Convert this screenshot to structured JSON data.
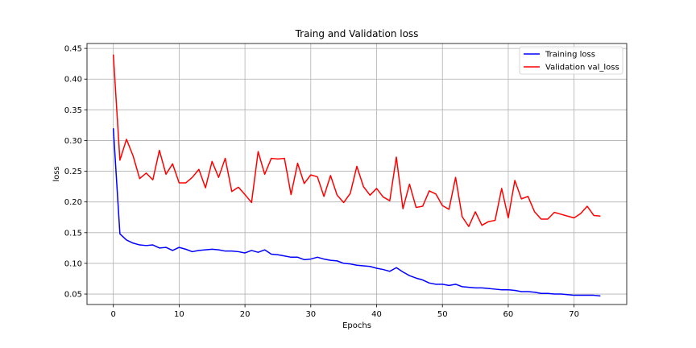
{
  "chart_data": {
    "type": "line",
    "title": "Traing and Validation loss",
    "xlabel": "Epochs",
    "ylabel": "loss",
    "xlim": [
      -4,
      78
    ],
    "ylim": [
      0.033,
      0.458
    ],
    "xticks": [
      0,
      10,
      20,
      30,
      40,
      50,
      60,
      70
    ],
    "yticks": [
      0.05,
      0.1,
      0.15,
      0.2,
      0.25,
      0.3,
      0.35,
      0.4,
      0.45
    ],
    "grid": true,
    "legend_position": "top-right",
    "series": [
      {
        "name": "Training loss",
        "color": "#0000ff",
        "values": [
          0.32,
          0.148,
          0.138,
          0.133,
          0.13,
          0.129,
          0.13,
          0.125,
          0.126,
          0.121,
          0.126,
          0.123,
          0.119,
          0.121,
          0.122,
          0.123,
          0.122,
          0.12,
          0.12,
          0.119,
          0.117,
          0.121,
          0.118,
          0.122,
          0.115,
          0.114,
          0.112,
          0.11,
          0.11,
          0.106,
          0.107,
          0.11,
          0.107,
          0.105,
          0.104,
          0.1,
          0.099,
          0.097,
          0.096,
          0.095,
          0.092,
          0.09,
          0.087,
          0.093,
          0.086,
          0.08,
          0.076,
          0.073,
          0.068,
          0.066,
          0.066,
          0.064,
          0.066,
          0.062,
          0.061,
          0.06,
          0.06,
          0.059,
          0.058,
          0.057,
          0.057,
          0.056,
          0.054,
          0.054,
          0.053,
          0.051,
          0.051,
          0.05,
          0.05,
          0.049,
          0.048,
          0.048,
          0.048,
          0.048,
          0.047
        ]
      },
      {
        "name": "Validation val_loss",
        "color": "#ff0000",
        "values": [
          0.44,
          0.268,
          0.302,
          0.275,
          0.238,
          0.247,
          0.236,
          0.284,
          0.245,
          0.262,
          0.231,
          0.231,
          0.24,
          0.253,
          0.223,
          0.266,
          0.24,
          0.271,
          0.217,
          0.224,
          0.212,
          0.199,
          0.282,
          0.245,
          0.271,
          0.27,
          0.271,
          0.212,
          0.263,
          0.23,
          0.244,
          0.241,
          0.209,
          0.243,
          0.211,
          0.199,
          0.214,
          0.258,
          0.225,
          0.211,
          0.222,
          0.208,
          0.202,
          0.273,
          0.189,
          0.229,
          0.191,
          0.193,
          0.218,
          0.213,
          0.194,
          0.188,
          0.24,
          0.176,
          0.16,
          0.184,
          0.162,
          0.168,
          0.17,
          0.222,
          0.174,
          0.235,
          0.205,
          0.209,
          0.184,
          0.172,
          0.172,
          0.183,
          0.18,
          0.177,
          0.174,
          0.181,
          0.193,
          0.178,
          0.177
        ]
      }
    ]
  }
}
